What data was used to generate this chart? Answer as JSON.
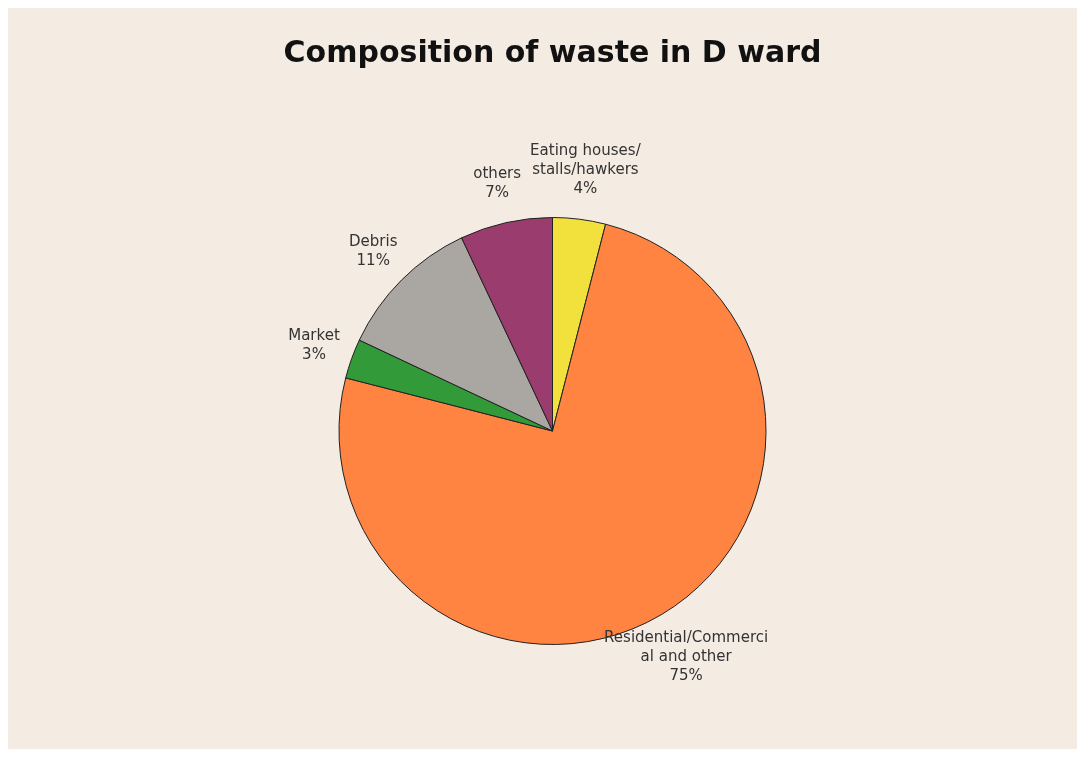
{
  "chart_data": {
    "type": "pie",
    "title": "Composition of waste in D ward",
    "categories": [
      "Eating houses/ stalls/hawkers",
      "Residential/Commercial and other",
      "Market",
      "Debris",
      "others"
    ],
    "values": [
      4,
      75,
      3,
      11,
      7
    ],
    "value_labels": [
      "4%",
      "75%",
      "3%",
      "11%",
      "7%"
    ],
    "colors": [
      "#f2e03c",
      "#ff8442",
      "#339a3a",
      "#aaa6a2",
      "#9a3d6e"
    ],
    "legend": false
  }
}
